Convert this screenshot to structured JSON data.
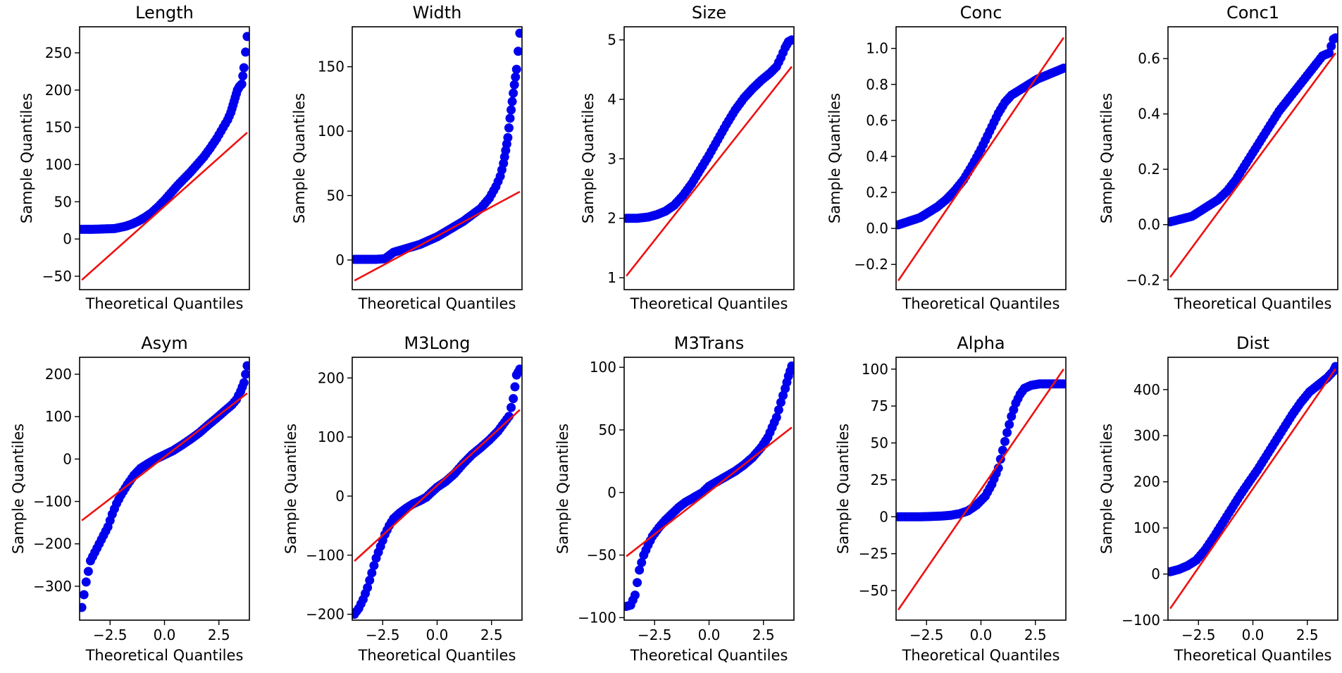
{
  "chart_data": [
    {
      "type": "scatter",
      "kind": "qq-plot",
      "title": "Length",
      "xlabel": "Theoretical Quantiles",
      "ylabel": "Sample Quantiles",
      "xlim": [
        -3.9,
        3.9
      ],
      "ylim": [
        -68,
        285
      ],
      "xticks": [],
      "yticks": [
        -50,
        0,
        50,
        100,
        150,
        200,
        250
      ],
      "yticklabels": [
        "−50",
        "0",
        "50",
        "100",
        "150",
        "200",
        "250"
      ],
      "points": [
        [
          -3.8,
          13
        ],
        [
          -3.3,
          13
        ],
        [
          -2.8,
          13.5
        ],
        [
          -2.3,
          14
        ],
        [
          -1.8,
          17
        ],
        [
          -1.5,
          20
        ],
        [
          -1.2,
          24
        ],
        [
          -0.9,
          29
        ],
        [
          -0.6,
          35
        ],
        [
          -0.3,
          43
        ],
        [
          0,
          52
        ],
        [
          0.3,
          62
        ],
        [
          0.6,
          72
        ],
        [
          0.9,
          81
        ],
        [
          1.2,
          90
        ],
        [
          1.5,
          100
        ],
        [
          1.8,
          110
        ],
        [
          2.1,
          122
        ],
        [
          2.4,
          135
        ],
        [
          2.7,
          150
        ],
        [
          2.9,
          160
        ],
        [
          3.05,
          170
        ],
        [
          3.15,
          180
        ],
        [
          3.25,
          190
        ],
        [
          3.35,
          200
        ],
        [
          3.45,
          205
        ],
        [
          3.55,
          208
        ],
        [
          3.65,
          230
        ],
        [
          3.8,
          272
        ]
      ],
      "fit_line": [
        [
          -3.8,
          -55
        ],
        [
          3.8,
          143
        ]
      ]
    },
    {
      "type": "scatter",
      "kind": "qq-plot",
      "title": "Width",
      "xlabel": "Theoretical Quantiles",
      "ylabel": "Sample Quantiles",
      "xlim": [
        -3.9,
        3.9
      ],
      "ylim": [
        -23,
        181
      ],
      "xticks": [],
      "yticks": [
        0,
        50,
        100,
        150
      ],
      "yticklabels": [
        "0",
        "50",
        "100",
        "150"
      ],
      "points": [
        [
          -3.8,
          0.5
        ],
        [
          -3.3,
          0.5
        ],
        [
          -2.8,
          0.5
        ],
        [
          -2.4,
          1
        ],
        [
          -2.0,
          6
        ],
        [
          -1.6,
          8
        ],
        [
          -1.2,
          10
        ],
        [
          -0.8,
          12
        ],
        [
          -0.4,
          15
        ],
        [
          0,
          18
        ],
        [
          0.4,
          22
        ],
        [
          0.8,
          26
        ],
        [
          1.2,
          30
        ],
        [
          1.6,
          35
        ],
        [
          2.0,
          40
        ],
        [
          2.4,
          48
        ],
        [
          2.7,
          57
        ],
        [
          2.9,
          65
        ],
        [
          3.05,
          75
        ],
        [
          3.15,
          85
        ],
        [
          3.25,
          95
        ],
        [
          3.35,
          110
        ],
        [
          3.45,
          123
        ],
        [
          3.55,
          136
        ],
        [
          3.65,
          148
        ],
        [
          3.8,
          176
        ]
      ],
      "fit_line": [
        [
          -3.8,
          -16
        ],
        [
          3.8,
          53
        ]
      ]
    },
    {
      "type": "scatter",
      "kind": "qq-plot",
      "title": "Size",
      "xlabel": "Theoretical Quantiles",
      "ylabel": "Sample Quantiles",
      "xlim": [
        -3.9,
        3.9
      ],
      "ylim": [
        0.8,
        5.22
      ],
      "xticks": [],
      "yticks": [
        1,
        2,
        3,
        4,
        5
      ],
      "yticklabels": [
        "1",
        "2",
        "3",
        "4",
        "5"
      ],
      "points": [
        [
          -3.8,
          2.0
        ],
        [
          -3.3,
          2.0
        ],
        [
          -2.8,
          2.02
        ],
        [
          -2.4,
          2.06
        ],
        [
          -2.0,
          2.12
        ],
        [
          -1.6,
          2.22
        ],
        [
          -1.2,
          2.38
        ],
        [
          -0.8,
          2.58
        ],
        [
          -0.4,
          2.82
        ],
        [
          0,
          3.06
        ],
        [
          0.4,
          3.32
        ],
        [
          0.8,
          3.58
        ],
        [
          1.2,
          3.82
        ],
        [
          1.6,
          4.02
        ],
        [
          2.0,
          4.18
        ],
        [
          2.4,
          4.32
        ],
        [
          2.8,
          4.44
        ],
        [
          3.1,
          4.55
        ],
        [
          3.3,
          4.7
        ],
        [
          3.5,
          4.87
        ],
        [
          3.65,
          4.97
        ],
        [
          3.8,
          5.0
        ]
      ],
      "fit_line": [
        [
          -3.8,
          1.03
        ],
        [
          3.8,
          4.55
        ]
      ]
    },
    {
      "type": "scatter",
      "kind": "qq-plot",
      "title": "Conc",
      "xlabel": "Theoretical Quantiles",
      "ylabel": "Sample Quantiles",
      "xlim": [
        -3.9,
        3.9
      ],
      "ylim": [
        -0.34,
        1.12
      ],
      "xticks": [],
      "yticks": [
        -0.2,
        0.0,
        0.2,
        0.4,
        0.6,
        0.8,
        1.0
      ],
      "yticklabels": [
        "−0.2",
        "0.0",
        "0.2",
        "0.4",
        "0.6",
        "0.8",
        "1.0"
      ],
      "points": [
        [
          -3.8,
          0.02
        ],
        [
          -3.3,
          0.04
        ],
        [
          -2.8,
          0.06
        ],
        [
          -2.4,
          0.09
        ],
        [
          -2.0,
          0.12
        ],
        [
          -1.6,
          0.16
        ],
        [
          -1.2,
          0.21
        ],
        [
          -0.8,
          0.27
        ],
        [
          -0.4,
          0.35
        ],
        [
          0,
          0.44
        ],
        [
          0.4,
          0.54
        ],
        [
          0.8,
          0.64
        ],
        [
          1.1,
          0.7
        ],
        [
          1.4,
          0.74
        ],
        [
          1.8,
          0.77
        ],
        [
          2.2,
          0.8
        ],
        [
          2.6,
          0.83
        ],
        [
          3.0,
          0.85
        ],
        [
          3.4,
          0.87
        ],
        [
          3.8,
          0.89
        ]
      ],
      "fit_line": [
        [
          -3.8,
          -0.29
        ],
        [
          3.8,
          1.06
        ]
      ]
    },
    {
      "type": "scatter",
      "kind": "qq-plot",
      "title": "Conc1",
      "xlabel": "Theoretical Quantiles",
      "ylabel": "Sample Quantiles",
      "xlim": [
        -3.9,
        3.9
      ],
      "ylim": [
        -0.235,
        0.715
      ],
      "xticks": [],
      "yticks": [
        -0.2,
        0.0,
        0.2,
        0.4,
        0.6
      ],
      "yticklabels": [
        "−0.2",
        "0.0",
        "0.2",
        "0.4",
        "0.6"
      ],
      "points": [
        [
          -3.8,
          0.01
        ],
        [
          -3.3,
          0.02
        ],
        [
          -2.8,
          0.03
        ],
        [
          -2.4,
          0.05
        ],
        [
          -2.0,
          0.07
        ],
        [
          -1.6,
          0.09
        ],
        [
          -1.2,
          0.12
        ],
        [
          -0.8,
          0.16
        ],
        [
          -0.4,
          0.21
        ],
        [
          0,
          0.26
        ],
        [
          0.4,
          0.31
        ],
        [
          0.8,
          0.36
        ],
        [
          1.2,
          0.41
        ],
        [
          1.6,
          0.45
        ],
        [
          2.0,
          0.49
        ],
        [
          2.4,
          0.53
        ],
        [
          2.8,
          0.57
        ],
        [
          3.2,
          0.61
        ],
        [
          3.5,
          0.62
        ],
        [
          3.7,
          0.67
        ],
        [
          3.8,
          0.675
        ]
      ],
      "fit_line": [
        [
          -3.8,
          -0.19
        ],
        [
          3.8,
          0.62
        ]
      ]
    },
    {
      "type": "scatter",
      "kind": "qq-plot",
      "title": "Asym",
      "xlabel": "Theoretical Quantiles",
      "ylabel": "Sample Quantiles",
      "xlim": [
        -3.9,
        3.9
      ],
      "ylim": [
        -380,
        240
      ],
      "xticks": [
        -2.5,
        0.0,
        2.5
      ],
      "xticklabels": [
        "−2.5",
        "0.0",
        "2.5"
      ],
      "yticks": [
        -300,
        -200,
        -100,
        0,
        100,
        200
      ],
      "yticklabels": [
        "−300",
        "−200",
        "−100",
        "0",
        "100",
        "200"
      ],
      "points": [
        [
          -3.8,
          -350
        ],
        [
          -3.6,
          -290
        ],
        [
          -3.4,
          -240
        ],
        [
          -3.2,
          -220
        ],
        [
          -3.0,
          -200
        ],
        [
          -2.8,
          -180
        ],
        [
          -2.6,
          -160
        ],
        [
          -2.4,
          -130
        ],
        [
          -2.2,
          -105
        ],
        [
          -2.0,
          -85
        ],
        [
          -1.7,
          -60
        ],
        [
          -1.4,
          -38
        ],
        [
          -1.1,
          -22
        ],
        [
          -0.8,
          -12
        ],
        [
          -0.4,
          0
        ],
        [
          0,
          10
        ],
        [
          0.4,
          20
        ],
        [
          0.8,
          33
        ],
        [
          1.2,
          47
        ],
        [
          1.6,
          62
        ],
        [
          2.0,
          80
        ],
        [
          2.4,
          97
        ],
        [
          2.8,
          115
        ],
        [
          3.1,
          128
        ],
        [
          3.3,
          140
        ],
        [
          3.5,
          160
        ],
        [
          3.65,
          180
        ],
        [
          3.8,
          220
        ]
      ],
      "fit_line": [
        [
          -3.8,
          -145
        ],
        [
          3.8,
          155
        ]
      ]
    },
    {
      "type": "scatter",
      "kind": "qq-plot",
      "title": "M3Long",
      "xlabel": "Theoretical Quantiles",
      "ylabel": "Sample Quantiles",
      "xlim": [
        -3.9,
        3.9
      ],
      "ylim": [
        -210,
        235
      ],
      "xticks": [
        -2.5,
        0.0,
        2.5
      ],
      "xticklabels": [
        "−2.5",
        "0.0",
        "2.5"
      ],
      "yticks": [
        -200,
        -100,
        0,
        100,
        200
      ],
      "yticklabels": [
        "−200",
        "−100",
        "0",
        "100",
        "200"
      ],
      "points": [
        [
          -3.8,
          -200
        ],
        [
          -3.6,
          -190
        ],
        [
          -3.4,
          -175
        ],
        [
          -3.2,
          -155
        ],
        [
          -3.0,
          -130
        ],
        [
          -2.8,
          -105
        ],
        [
          -2.6,
          -85
        ],
        [
          -2.4,
          -65
        ],
        [
          -2.2,
          -50
        ],
        [
          -2.0,
          -38
        ],
        [
          -1.7,
          -28
        ],
        [
          -1.4,
          -20
        ],
        [
          -1.1,
          -13
        ],
        [
          -0.8,
          -8
        ],
        [
          -0.5,
          -2
        ],
        [
          -0.3,
          5
        ],
        [
          0,
          15
        ],
        [
          0.4,
          25
        ],
        [
          0.8,
          38
        ],
        [
          1.2,
          55
        ],
        [
          1.6,
          70
        ],
        [
          2.0,
          82
        ],
        [
          2.4,
          95
        ],
        [
          2.8,
          110
        ],
        [
          3.1,
          125
        ],
        [
          3.3,
          135
        ],
        [
          3.5,
          165
        ],
        [
          3.65,
          205
        ],
        [
          3.8,
          215
        ]
      ],
      "fit_line": [
        [
          -3.8,
          -110
        ],
        [
          3.8,
          146
        ]
      ]
    },
    {
      "type": "scatter",
      "kind": "qq-plot",
      "title": "M3Trans",
      "xlabel": "Theoretical Quantiles",
      "ylabel": "Sample Quantiles",
      "xlim": [
        -3.9,
        3.9
      ],
      "ylim": [
        -102,
        108
      ],
      "xticks": [
        -2.5,
        0.0,
        2.5
      ],
      "xticklabels": [
        "−2.5",
        "0.0",
        "2.5"
      ],
      "yticks": [
        -100,
        -50,
        0,
        50,
        100
      ],
      "yticklabels": [
        "−100",
        "−50",
        "0",
        "50",
        "100"
      ],
      "points": [
        [
          -3.8,
          -91
        ],
        [
          -3.6,
          -90
        ],
        [
          -3.4,
          -82
        ],
        [
          -3.2,
          -62
        ],
        [
          -3.0,
          -50
        ],
        [
          -2.8,
          -42
        ],
        [
          -2.6,
          -35
        ],
        [
          -2.3,
          -28
        ],
        [
          -2.0,
          -22
        ],
        [
          -1.7,
          -17
        ],
        [
          -1.4,
          -12
        ],
        [
          -1.1,
          -8
        ],
        [
          -0.8,
          -5
        ],
        [
          -0.5,
          -2
        ],
        [
          -0.3,
          0
        ],
        [
          0,
          5
        ],
        [
          0.4,
          9
        ],
        [
          0.8,
          13
        ],
        [
          1.2,
          17
        ],
        [
          1.6,
          22
        ],
        [
          2.0,
          28
        ],
        [
          2.4,
          36
        ],
        [
          2.7,
          44
        ],
        [
          2.9,
          52
        ],
        [
          3.1,
          60
        ],
        [
          3.3,
          72
        ],
        [
          3.5,
          83
        ],
        [
          3.65,
          93
        ],
        [
          3.8,
          101
        ]
      ],
      "fit_line": [
        [
          -3.8,
          -51
        ],
        [
          3.8,
          52
        ]
      ]
    },
    {
      "type": "scatter",
      "kind": "qq-plot",
      "title": "Alpha",
      "xlabel": "Theoretical Quantiles",
      "ylabel": "Sample Quantiles",
      "xlim": [
        -3.9,
        3.9
      ],
      "ylim": [
        -70,
        108
      ],
      "xticks": [
        -2.5,
        0.0,
        2.5
      ],
      "xticklabels": [
        "−2.5",
        "0.0",
        "2.5"
      ],
      "yticks": [
        -50,
        -25,
        0,
        25,
        50,
        75,
        100
      ],
      "yticklabels": [
        "−50",
        "−25",
        "0",
        "25",
        "50",
        "75",
        "100"
      ],
      "points": [
        [
          -3.8,
          0
        ],
        [
          -3.3,
          0
        ],
        [
          -2.8,
          0
        ],
        [
          -2.3,
          0.2
        ],
        [
          -1.8,
          0.5
        ],
        [
          -1.4,
          1
        ],
        [
          -1.0,
          2
        ],
        [
          -0.6,
          4
        ],
        [
          -0.2,
          8
        ],
        [
          0.2,
          14
        ],
        [
          0.5,
          22
        ],
        [
          0.8,
          33
        ],
        [
          1.0,
          45
        ],
        [
          1.2,
          57
        ],
        [
          1.4,
          68
        ],
        [
          1.6,
          77
        ],
        [
          1.8,
          83
        ],
        [
          2.0,
          87
        ],
        [
          2.3,
          89
        ],
        [
          2.7,
          90
        ],
        [
          3.2,
          90
        ],
        [
          3.8,
          90
        ]
      ],
      "fit_line": [
        [
          -3.8,
          -63
        ],
        [
          3.8,
          100
        ]
      ]
    },
    {
      "type": "scatter",
      "kind": "qq-plot",
      "title": "Dist",
      "xlabel": "Theoretical Quantiles",
      "ylabel": "Sample Quantiles",
      "xlim": [
        -3.9,
        3.9
      ],
      "ylim": [
        -100,
        470
      ],
      "xticks": [
        -2.5,
        0.0,
        2.5
      ],
      "xticklabels": [
        "−2.5",
        "0.0",
        "2.5"
      ],
      "yticks": [
        -100,
        0,
        100,
        200,
        300,
        400
      ],
      "yticklabels": [
        "−100",
        "0",
        "100",
        "200",
        "300",
        "400"
      ],
      "points": [
        [
          -3.8,
          5
        ],
        [
          -3.4,
          10
        ],
        [
          -3.0,
          18
        ],
        [
          -2.6,
          30
        ],
        [
          -2.2,
          52
        ],
        [
          -1.8,
          80
        ],
        [
          -1.4,
          110
        ],
        [
          -1.0,
          140
        ],
        [
          -0.6,
          170
        ],
        [
          -0.2,
          198
        ],
        [
          0.2,
          225
        ],
        [
          0.6,
          255
        ],
        [
          1.0,
          285
        ],
        [
          1.4,
          315
        ],
        [
          1.8,
          345
        ],
        [
          2.2,
          372
        ],
        [
          2.6,
          395
        ],
        [
          3.0,
          410
        ],
        [
          3.4,
          425
        ],
        [
          3.7,
          440
        ],
        [
          3.8,
          450
        ]
      ],
      "fit_line": [
        [
          -3.8,
          -75
        ],
        [
          3.8,
          445
        ]
      ]
    }
  ]
}
